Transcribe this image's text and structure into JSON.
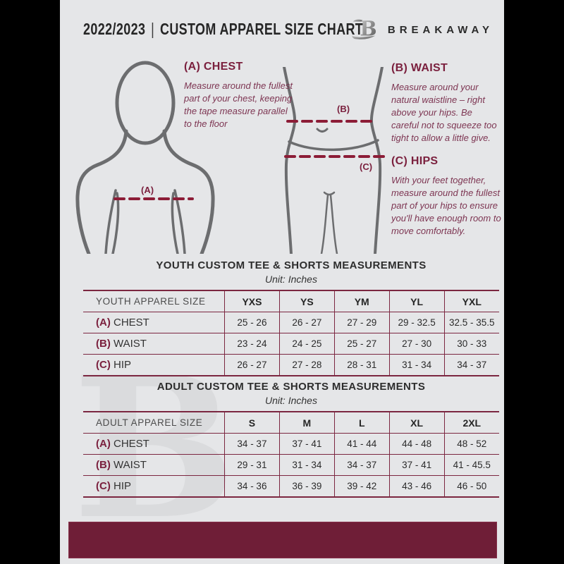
{
  "header": {
    "title_year": "2022/2023",
    "title_sep": "|",
    "title_main": "CUSTOM APPAREL SIZE CHART",
    "brand": "BREAKAWAY",
    "logo_icon": "breakaway-b-logo"
  },
  "instructions": [
    {
      "key": "A",
      "label": "(A) CHEST",
      "text": "Measure around the fullest part of your chest, keeping the tape measure parallel to the floor"
    },
    {
      "key": "B",
      "label": "(B) WAIST",
      "text": "Measure around your natural waistline – right above your hips. Be careful not to squeeze too tight to allow a little give."
    },
    {
      "key": "C",
      "label": "(C) HIPS",
      "text": "With your feet together, measure around the fullest part of your hips to ensure you'll have enough room to move comfortably."
    }
  ],
  "figure_labels": {
    "chest": "(A)",
    "waist": "(B)",
    "hips": "(C)"
  },
  "tables": [
    {
      "title": "YOUTH CUSTOM TEE & SHORTS MEASUREMENTS",
      "unit": "Unit: Inches",
      "header": [
        "YOUTH APPAREL SIZE",
        "YXS",
        "YS",
        "YM",
        "YL",
        "YXL"
      ],
      "rows": [
        {
          "prefix": "(A)",
          "label": "CHEST",
          "values": [
            "25 - 26",
            "26 - 27",
            "27 - 29",
            "29 - 32.5",
            "32.5 - 35.5"
          ]
        },
        {
          "prefix": "(B)",
          "label": "WAIST",
          "values": [
            "23 - 24",
            "24 - 25",
            "25 - 27",
            "27 - 30",
            "30 - 33"
          ]
        },
        {
          "prefix": "(C)",
          "label": "HIP",
          "values": [
            "26 - 27",
            "27 - 28",
            "28 - 31",
            "31 - 34",
            "34 - 37"
          ]
        }
      ]
    },
    {
      "title": "ADULT CUSTOM TEE & SHORTS MEASUREMENTS",
      "unit": "Unit: Inches",
      "header": [
        "ADULT APPAREL SIZE",
        "S",
        "M",
        "L",
        "XL",
        "2XL"
      ],
      "rows": [
        {
          "prefix": "(A)",
          "label": "CHEST",
          "values": [
            "34 - 37",
            "37 - 41",
            "41 - 44",
            "44 - 48",
            "48 - 52"
          ]
        },
        {
          "prefix": "(B)",
          "label": "WAIST",
          "values": [
            "29 - 31",
            "31 - 34",
            "34 - 37",
            "37 - 41",
            "41 - 45.5"
          ]
        },
        {
          "prefix": "(C)",
          "label": "HIP",
          "values": [
            "34 - 36",
            "36 - 39",
            "39 - 42",
            "43 - 46",
            "46 - 50"
          ]
        }
      ]
    }
  ],
  "watermark": "B",
  "colors": {
    "page_bg": "#e5e6e8",
    "maroon_dark": "#6f1e37",
    "maroon_line": "#7b2640",
    "maroon_text": "#7a1f3d",
    "dash_line": "#8c1c36",
    "figure_stroke": "#6c6d6f"
  }
}
